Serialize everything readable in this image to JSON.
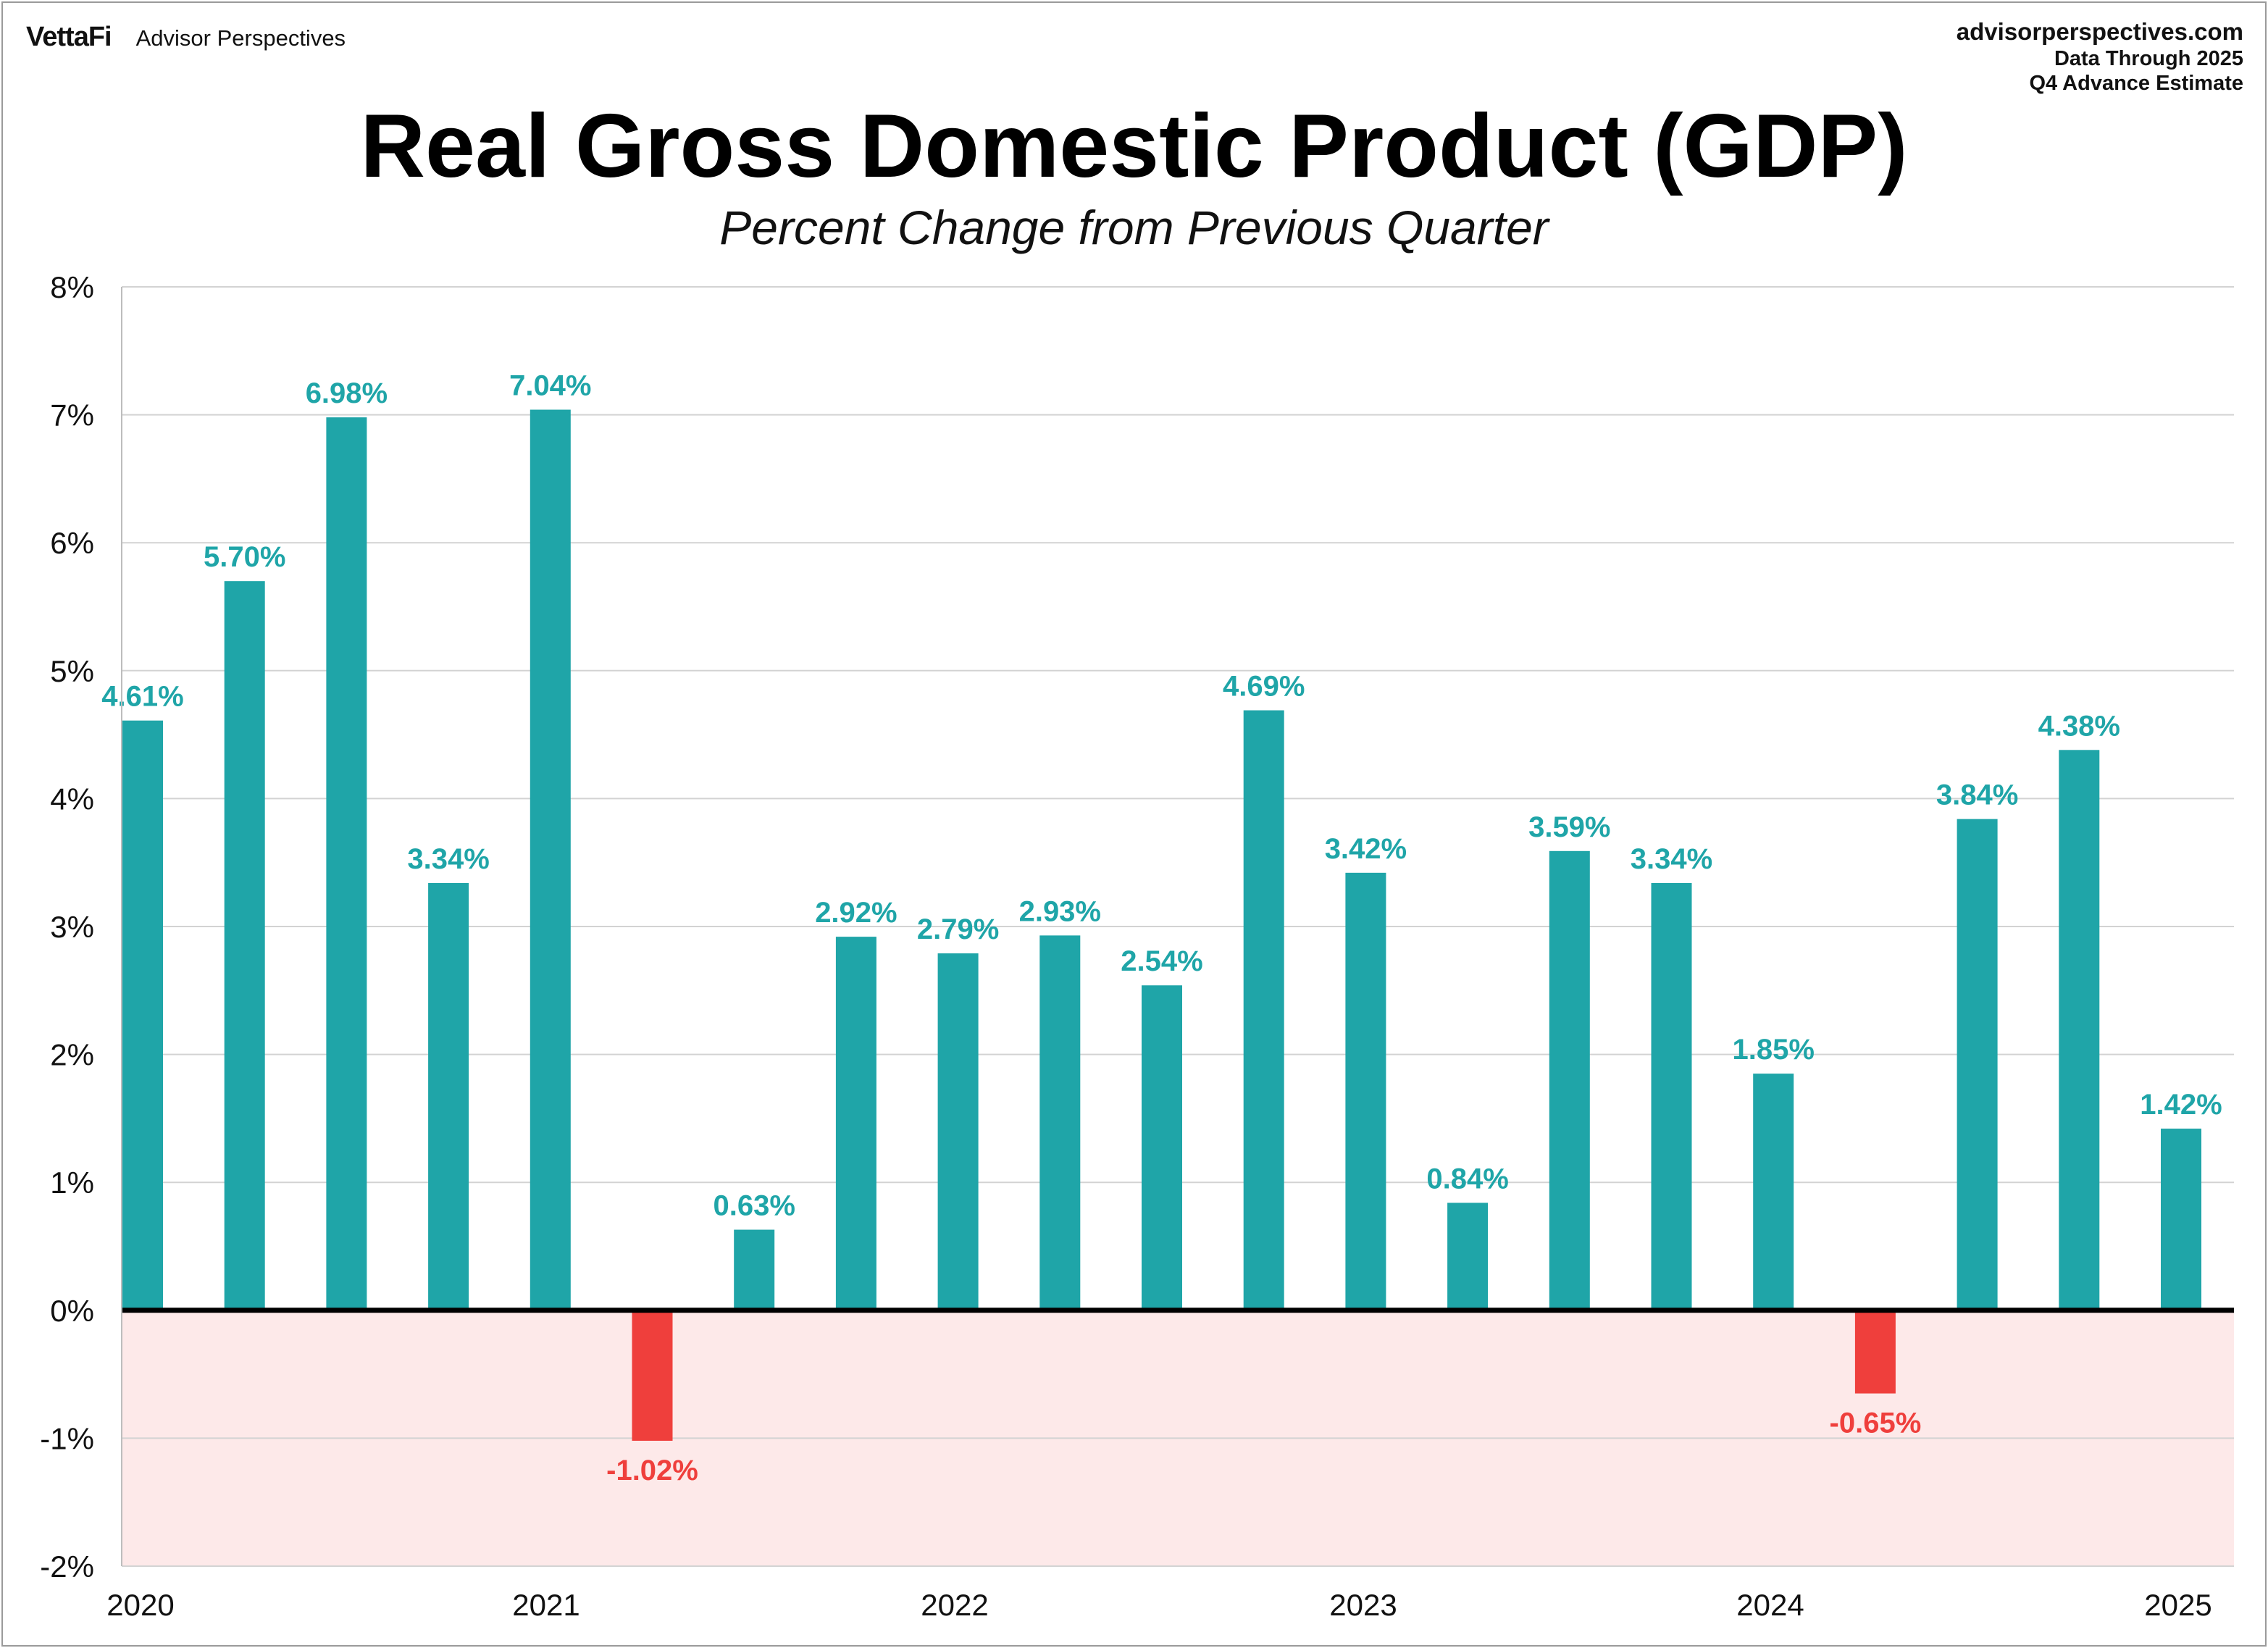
{
  "brand": {
    "logo": "VettaFi",
    "name": "Advisor Perspectives"
  },
  "meta": {
    "site": "advisorperspectives.com",
    "line1": "Data Through 2025",
    "line2": "Q4 Advance Estimate"
  },
  "colors": {
    "positive": "#1fa5a8",
    "negative": "#ef3f3c",
    "negative_zone": "#fde9e9",
    "grid": "#d3d3d3",
    "zero_line": "#000000"
  },
  "chart_data": {
    "type": "bar",
    "title": "Real Gross Domestic Product (GDP)",
    "subtitle": "Percent Change from Previous Quarter",
    "xlabel": "",
    "ylabel": "",
    "ylim": [
      -2,
      8
    ],
    "y_ticks": [
      -2,
      -1,
      0,
      1,
      2,
      3,
      4,
      5,
      6,
      7,
      8
    ],
    "y_tick_labels": [
      "-2%",
      "-1%",
      "0%",
      "1%",
      "2%",
      "3%",
      "4%",
      "5%",
      "6%",
      "7%",
      "8%"
    ],
    "x_tick_labels": [
      "2020",
      "2021",
      "2022",
      "2023",
      "2024",
      "2025"
    ],
    "grid": true,
    "values": [
      4.61,
      5.7,
      6.98,
      3.34,
      7.04,
      -1.02,
      0.63,
      2.92,
      2.79,
      2.93,
      2.54,
      4.69,
      3.42,
      0.84,
      3.59,
      3.34,
      1.85,
      -0.65,
      3.84,
      4.38,
      1.42
    ],
    "data_labels": [
      "4.61%",
      "5.70%",
      "6.98%",
      "3.34%",
      "7.04%",
      "-1.02%",
      "0.63%",
      "2.92%",
      "2.79%",
      "2.93%",
      "2.54%",
      "4.69%",
      "3.42%",
      "0.84%",
      "3.59%",
      "3.34%",
      "1.85%",
      "-0.65%",
      "3.84%",
      "4.38%",
      "1.42%"
    ]
  }
}
